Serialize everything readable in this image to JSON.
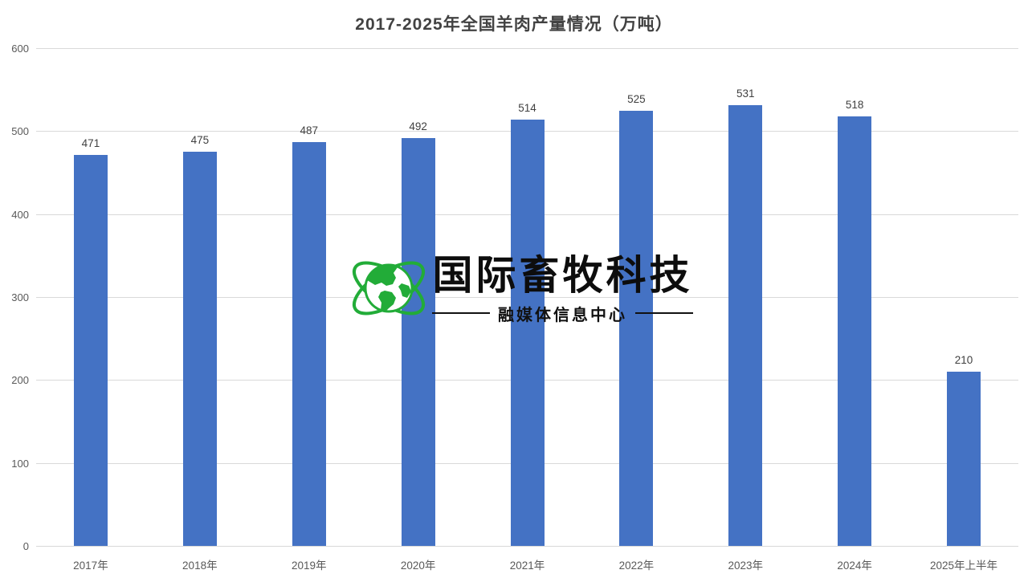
{
  "title": "2017-2025年全国羊肉产量情况（万吨）",
  "watermark": {
    "logo_text": "国际畜牧科技",
    "sub_text": "融媒体信息中心",
    "globe_icon": "globe-orbit-icon",
    "green": "#22ac38"
  },
  "colors": {
    "bar": "#4472c4",
    "grid": "#d9d9d9",
    "axis_text": "#595959",
    "value_label_text": "#404040",
    "title_text": "#424242"
  },
  "chart_data": {
    "type": "bar",
    "title": "2017-2025年全国羊肉产量情况（万吨）",
    "categories": [
      "2017年",
      "2018年",
      "2019年",
      "2020年",
      "2021年",
      "2022年",
      "2023年",
      "2024年",
      "2025年上半年"
    ],
    "values": [
      471,
      475,
      487,
      492,
      514,
      525,
      531,
      518,
      210
    ],
    "y_ticks": [
      0,
      100,
      200,
      300,
      400,
      500,
      600
    ],
    "ylim": [
      0,
      600
    ],
    "xlabel": "",
    "ylabel": "",
    "grid": true,
    "legend": false,
    "data_labels": true
  }
}
